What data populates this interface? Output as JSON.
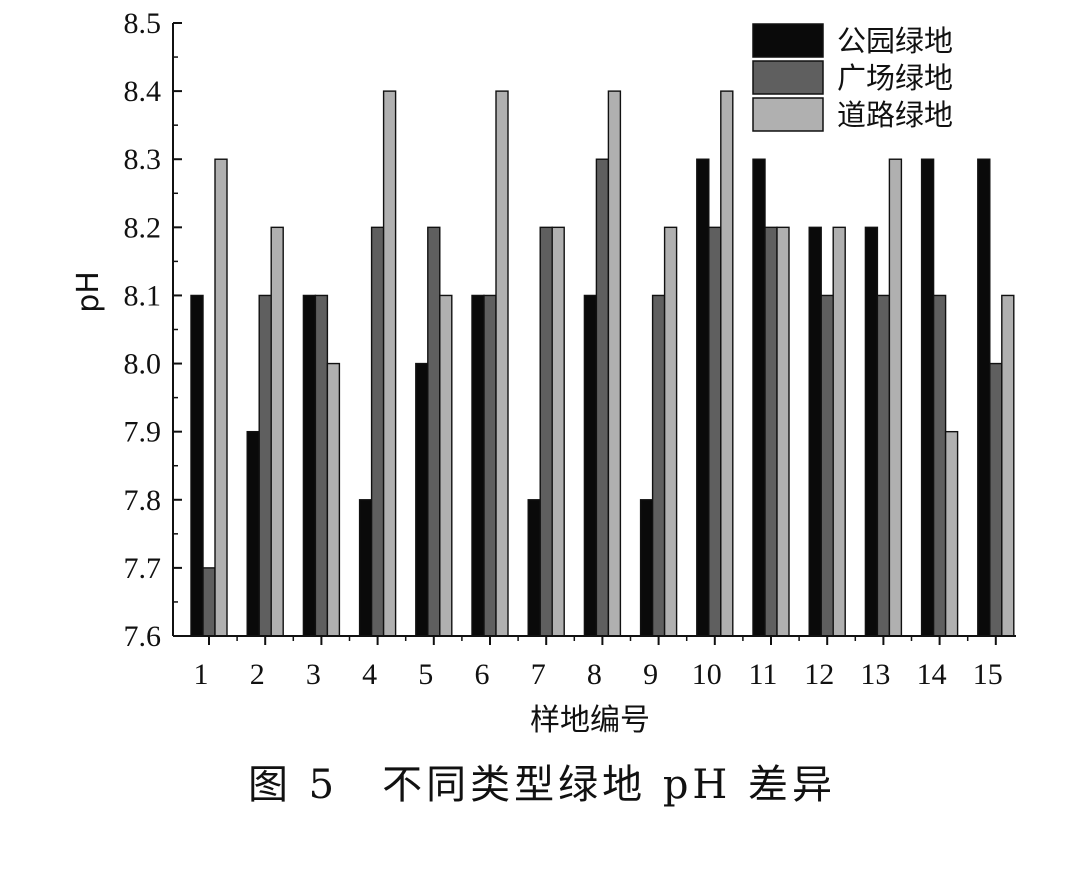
{
  "caption": "图 5　不同类型绿地 pH 差异",
  "chart_data": {
    "type": "bar",
    "title": "",
    "xlabel": "样地编号",
    "ylabel": "pH",
    "ylim": [
      7.6,
      8.5
    ],
    "yticks": [
      "7.6",
      "7.7",
      "7.8",
      "7.9",
      "8.0",
      "8.1",
      "8.2",
      "8.3",
      "8.4",
      "8.5"
    ],
    "categories": [
      "1",
      "2",
      "3",
      "4",
      "5",
      "6",
      "7",
      "8",
      "9",
      "10",
      "11",
      "12",
      "13",
      "14",
      "15"
    ],
    "legend_position": "top-right",
    "grid": false,
    "series": [
      {
        "name": "公园绿地",
        "color": "#0a0a0a",
        "values": [
          8.1,
          7.9,
          8.1,
          7.8,
          8.0,
          8.1,
          7.8,
          8.1,
          7.8,
          8.3,
          8.3,
          8.2,
          8.2,
          8.3,
          8.3
        ]
      },
      {
        "name": "广场绿地",
        "color": "#5f5f5f",
        "values": [
          7.7,
          8.1,
          8.1,
          8.2,
          8.2,
          8.1,
          8.2,
          8.3,
          8.1,
          8.2,
          8.2,
          8.1,
          8.1,
          8.1,
          8.0
        ]
      },
      {
        "name": "道路绿地",
        "color": "#b0b0b0",
        "values": [
          8.3,
          8.2,
          8.0,
          8.4,
          8.1,
          8.4,
          8.2,
          8.4,
          8.2,
          8.4,
          8.2,
          8.2,
          8.3,
          7.9,
          8.1
        ]
      }
    ]
  }
}
